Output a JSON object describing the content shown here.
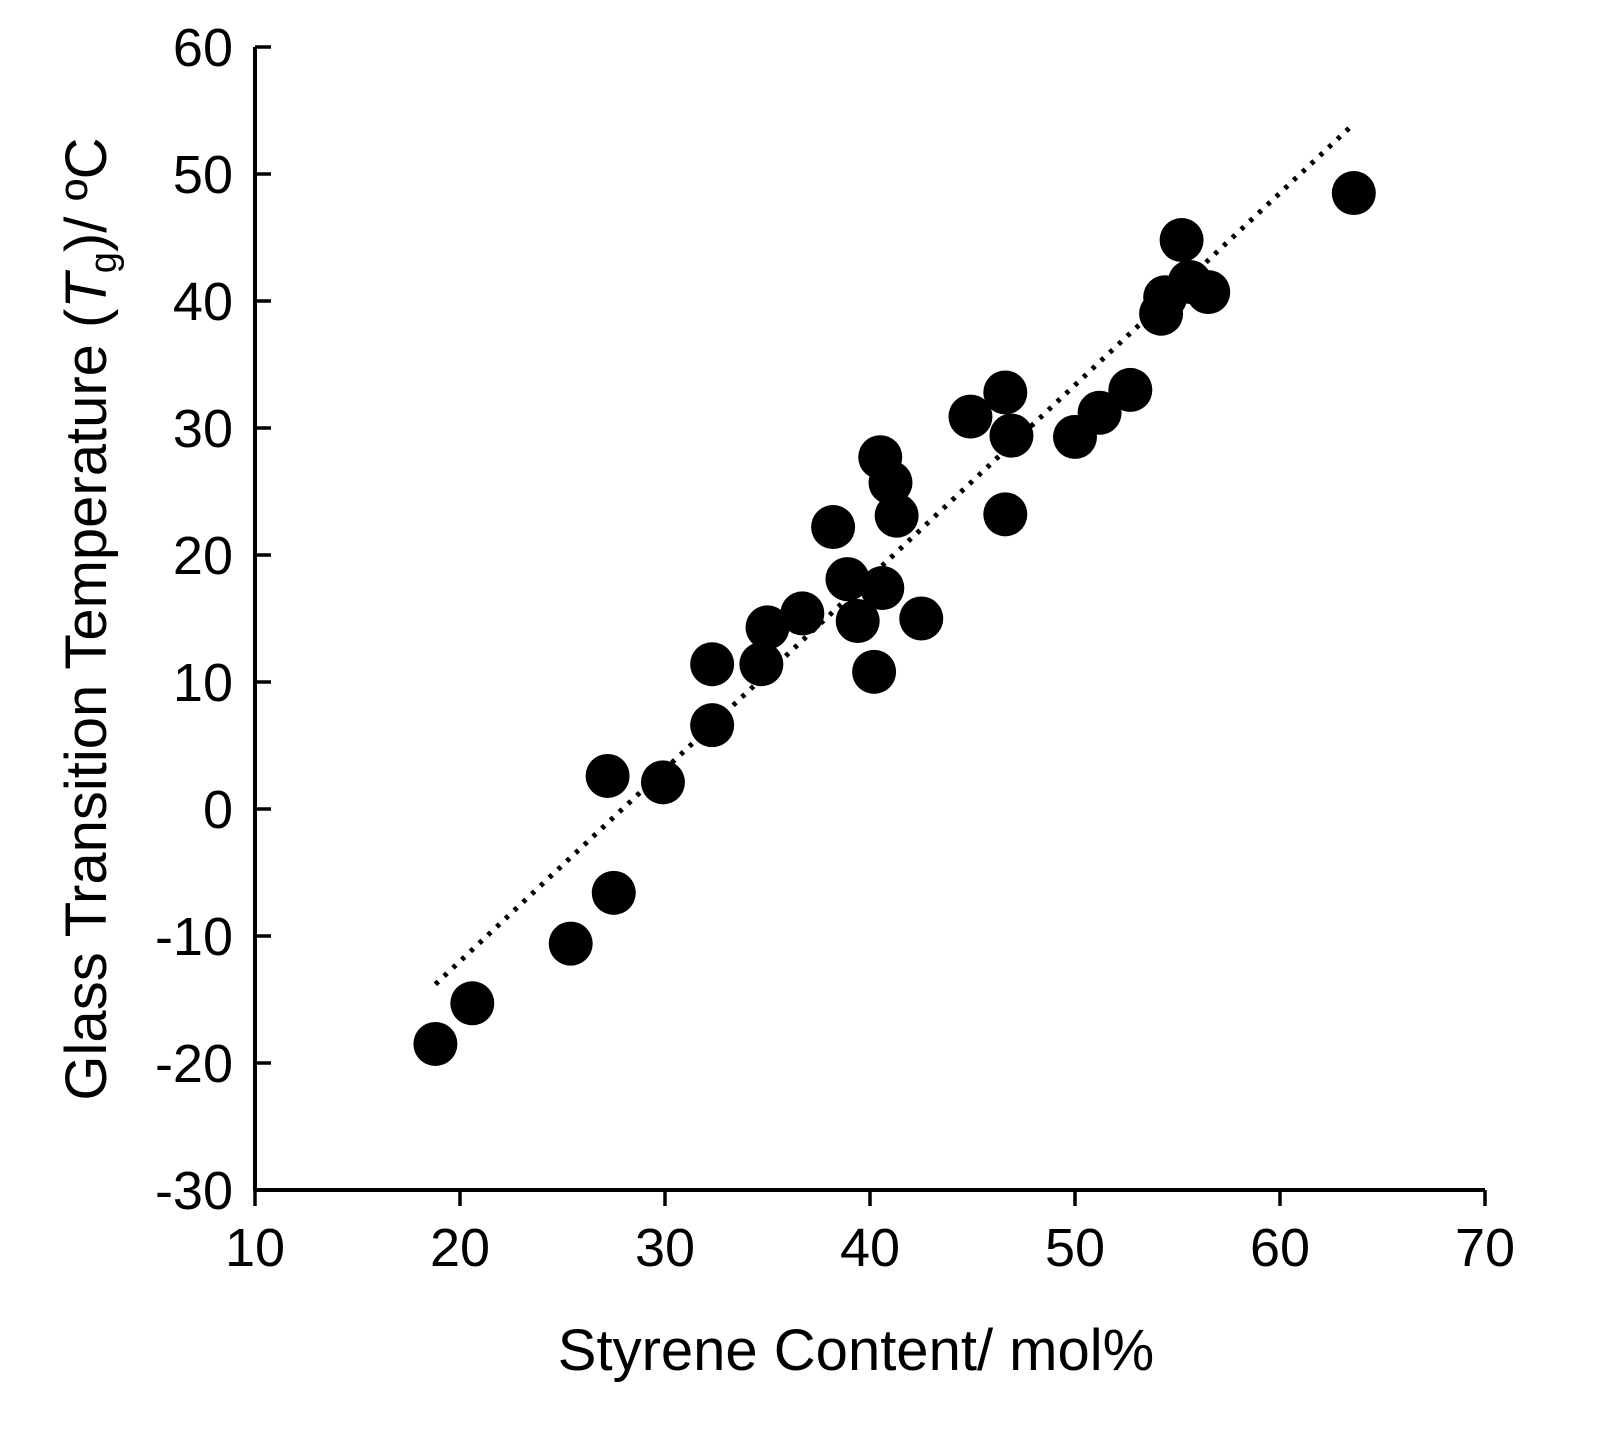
{
  "chart_data": {
    "type": "scatter",
    "title": "",
    "xlabel": "Styrene Content/ mol%",
    "ylabel": {
      "prefix": "Glass Transition Temperature (",
      "symbol": "T",
      "subscript": "g",
      "suffix": ")/ ºC"
    },
    "xlim": [
      10,
      70
    ],
    "ylim": [
      -30,
      60
    ],
    "x_ticks": [
      "10",
      "20",
      "30",
      "40",
      "50",
      "60",
      "70"
    ],
    "y_ticks": [
      "-30",
      "-20",
      "-10",
      "0",
      "10",
      "20",
      "30",
      "40",
      "50",
      "60"
    ],
    "grid": false,
    "legend": false,
    "colors": {
      "marker": "#000000",
      "axis": "#000000",
      "trendline": "#000000"
    },
    "trendline": {
      "style": "dotted",
      "points": [
        {
          "x": 18.8,
          "y": -13.8
        },
        {
          "x": 63.5,
          "y": 53.8
        }
      ]
    },
    "series": [
      {
        "points": [
          {
            "x": 18.8,
            "y": -18.5
          },
          {
            "x": 20.6,
            "y": -15.3
          },
          {
            "x": 25.4,
            "y": -10.6
          },
          {
            "x": 27.5,
            "y": -6.6
          },
          {
            "x": 27.2,
            "y": 2.6
          },
          {
            "x": 29.9,
            "y": 2.1
          },
          {
            "x": 32.3,
            "y": 6.6
          },
          {
            "x": 32.3,
            "y": 11.4
          },
          {
            "x": 34.7,
            "y": 11.4
          },
          {
            "x": 35.0,
            "y": 14.3
          },
          {
            "x": 36.7,
            "y": 15.4
          },
          {
            "x": 38.2,
            "y": 22.2
          },
          {
            "x": 38.9,
            "y": 18.1
          },
          {
            "x": 39.4,
            "y": 14.8
          },
          {
            "x": 40.2,
            "y": 10.8
          },
          {
            "x": 40.6,
            "y": 17.4
          },
          {
            "x": 42.5,
            "y": 15.0
          },
          {
            "x": 40.5,
            "y": 27.7
          },
          {
            "x": 41.0,
            "y": 25.7
          },
          {
            "x": 41.3,
            "y": 23.1
          },
          {
            "x": 44.9,
            "y": 30.9
          },
          {
            "x": 46.6,
            "y": 32.8
          },
          {
            "x": 46.9,
            "y": 29.4
          },
          {
            "x": 46.6,
            "y": 23.2
          },
          {
            "x": 50.0,
            "y": 29.3
          },
          {
            "x": 51.2,
            "y": 31.2
          },
          {
            "x": 52.7,
            "y": 33.0
          },
          {
            "x": 54.2,
            "y": 39.0
          },
          {
            "x": 54.4,
            "y": 40.3
          },
          {
            "x": 55.6,
            "y": 41.5
          },
          {
            "x": 56.5,
            "y": 40.7
          },
          {
            "x": 55.2,
            "y": 44.8
          },
          {
            "x": 63.6,
            "y": 48.5
          }
        ]
      }
    ]
  }
}
